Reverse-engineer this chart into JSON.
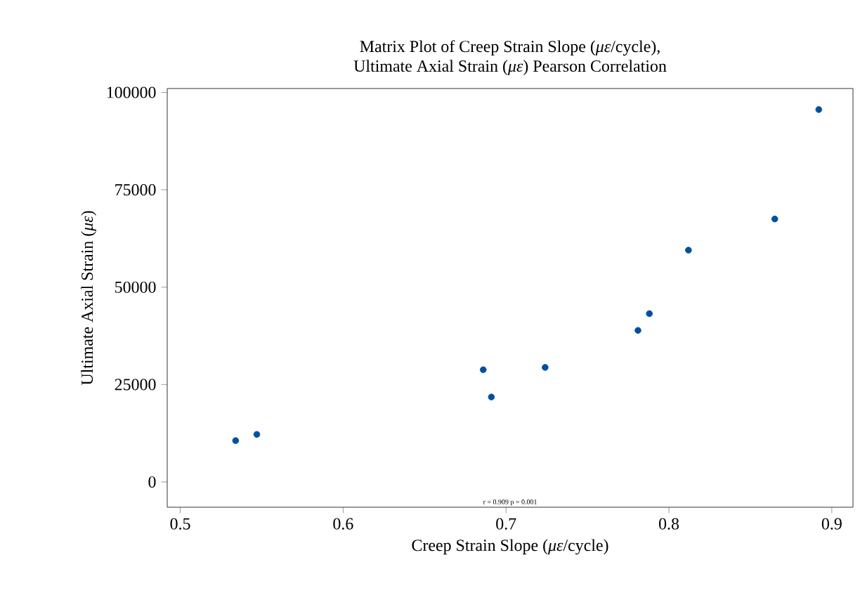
{
  "chart_data": {
    "type": "scatter",
    "title": "Matrix Plot of Creep Strain Slope (*με*/cycle),\nUltimate Axial Strain (*με*) Pearson Correlation",
    "xlabel": "Creep Strain Slope (*με*/cycle)",
    "ylabel": "Ultimate Axial Strain (*με*)",
    "annotations": [
      "r = 0.909 p = 0.001"
    ],
    "x": [
      0.534,
      0.547,
      0.686,
      0.691,
      0.724,
      0.781,
      0.788,
      0.812,
      0.865,
      0.892
    ],
    "values": [
      10600,
      12200,
      28800,
      21800,
      29400,
      38900,
      43200,
      59500,
      67500,
      95600
    ],
    "color": "#0050a0",
    "marker": "circle",
    "grid": false,
    "xlim": [
      0.492,
      0.913
    ],
    "ylim": [
      -6500,
      101000
    ],
    "xticks": [
      0.5,
      0.6,
      0.7,
      0.8,
      0.9
    ],
    "yticks": [
      0,
      25000,
      50000,
      75000,
      100000
    ]
  }
}
